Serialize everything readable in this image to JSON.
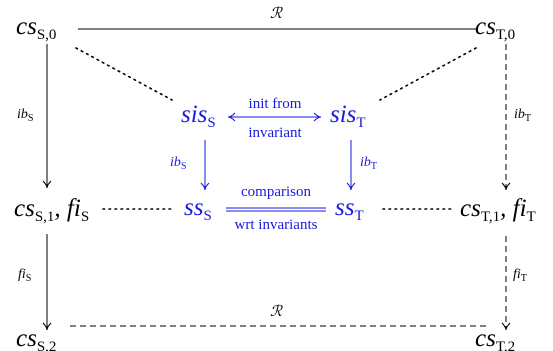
{
  "colors": {
    "black": "#000000",
    "accent": "#1a1ae0"
  },
  "nodes": {
    "cs_s0": {
      "main": "cs",
      "sub": "S,0"
    },
    "cs_t0": {
      "main": "cs",
      "sub": "T,0"
    },
    "sis_s": {
      "main": "sis",
      "sub": "S"
    },
    "sis_t": {
      "main": "sis",
      "sub": "T"
    },
    "ss_s": {
      "main": "ss",
      "sub": "S"
    },
    "ss_t": {
      "main": "ss",
      "sub": "T"
    },
    "cs_s1": {
      "main": "cs",
      "sub": "S,1",
      "extra": "fi",
      "extra_sub": "S",
      "sep": ","
    },
    "cs_t1": {
      "main": "cs",
      "sub": "T,1",
      "extra": "fi",
      "extra_sub": "T",
      "sep": ","
    },
    "cs_s2": {
      "main": "cs",
      "sub": "S,2"
    },
    "cs_t2": {
      "main": "cs",
      "sub": "T,2"
    }
  },
  "edge_labels": {
    "top_R": "ℛ",
    "bottom_R": "ℛ",
    "ib_s_outer": {
      "main": "ib",
      "sub": "S"
    },
    "ib_t_outer": {
      "main": "ib",
      "sub": "T"
    },
    "ib_s_inner": {
      "main": "ib",
      "sub": "S"
    },
    "ib_t_inner": {
      "main": "ib",
      "sub": "T"
    },
    "fi_s": {
      "main": "fi",
      "sub": "S"
    },
    "fi_t": {
      "main": "fi",
      "sub": "T"
    },
    "init_from_1": "init from",
    "init_from_2": "invariant",
    "comparison_1": "comparison",
    "comparison_2": "wrt invariants"
  }
}
